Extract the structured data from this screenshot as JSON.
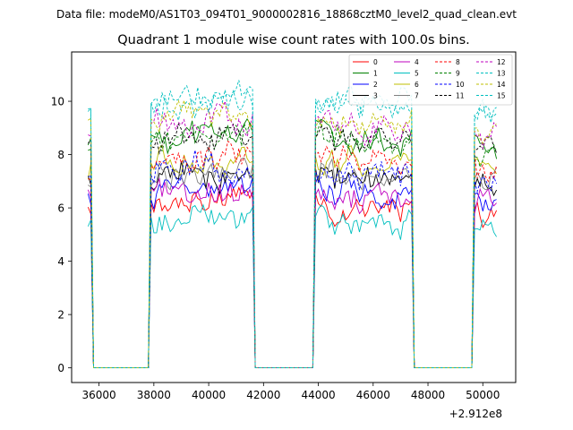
{
  "chart_data": {
    "type": "line",
    "suptitle": "Data file: modeM0/AS1T03_094T01_9000002816_18868cztM0_level2_quad_clean.evt",
    "title": "Quadrant 1 module wise count rates with 100.0s bins.",
    "xlabel": "",
    "ylabel": "",
    "x_offset_label": "+2.912e8",
    "xlim": [
      35000,
      51200
    ],
    "ylim": [
      -0.55,
      11.85
    ],
    "x_ticks": [
      36000,
      38000,
      40000,
      42000,
      44000,
      46000,
      48000,
      50000
    ],
    "x_tick_labels": [
      "36000",
      "38000",
      "40000",
      "42000",
      "44000",
      "46000",
      "48000",
      "50000"
    ],
    "y_ticks": [
      0,
      2,
      4,
      6,
      8,
      10
    ],
    "y_tick_labels": [
      "0",
      "2",
      "4",
      "6",
      "8",
      "10"
    ],
    "grid": false,
    "legend_position": "upper right",
    "legend_columns": 4,
    "bin_seconds": 100,
    "x_start": 35600,
    "x_end": 50500,
    "on_intervals": [
      [
        35600,
        35700
      ],
      [
        37900,
        41600
      ],
      [
        43900,
        47400
      ],
      [
        49700,
        50500
      ]
    ],
    "series": [
      {
        "name": "0",
        "color": "#ff0000",
        "dash": "solid",
        "mean": 6.0
      },
      {
        "name": "1",
        "color": "#008000",
        "dash": "solid",
        "mean": 8.6
      },
      {
        "name": "2",
        "color": "#0000ff",
        "dash": "solid",
        "mean": 6.6
      },
      {
        "name": "3",
        "color": "#000000",
        "dash": "solid",
        "mean": 7.1
      },
      {
        "name": "4",
        "color": "#bf00bf",
        "dash": "solid",
        "mean": 6.4
      },
      {
        "name": "5",
        "color": "#00bfbf",
        "dash": "solid",
        "mean": 5.3
      },
      {
        "name": "6",
        "color": "#bfbf00",
        "dash": "solid",
        "mean": 7.6
      },
      {
        "name": "7",
        "color": "#808080",
        "dash": "solid",
        "mean": 7.2
      },
      {
        "name": "8",
        "color": "#ff0000",
        "dash": "dashed",
        "mean": 7.7
      },
      {
        "name": "9",
        "color": "#008000",
        "dash": "dashed",
        "mean": 8.6
      },
      {
        "name": "10",
        "color": "#0000ff",
        "dash": "dashed",
        "mean": 7.4
      },
      {
        "name": "11",
        "color": "#000000",
        "dash": "dashed",
        "mean": 8.5
      },
      {
        "name": "12",
        "color": "#bf00bf",
        "dash": "dashed",
        "mean": 9.1
      },
      {
        "name": "13",
        "color": "#00bfbf",
        "dash": "dashed",
        "mean": 9.9
      },
      {
        "name": "14",
        "color": "#bfbf00",
        "dash": "dashed",
        "mean": 9.3
      },
      {
        "name": "15",
        "color": "#00bfbf",
        "dash": "dashed",
        "mean": 9.9
      }
    ]
  }
}
